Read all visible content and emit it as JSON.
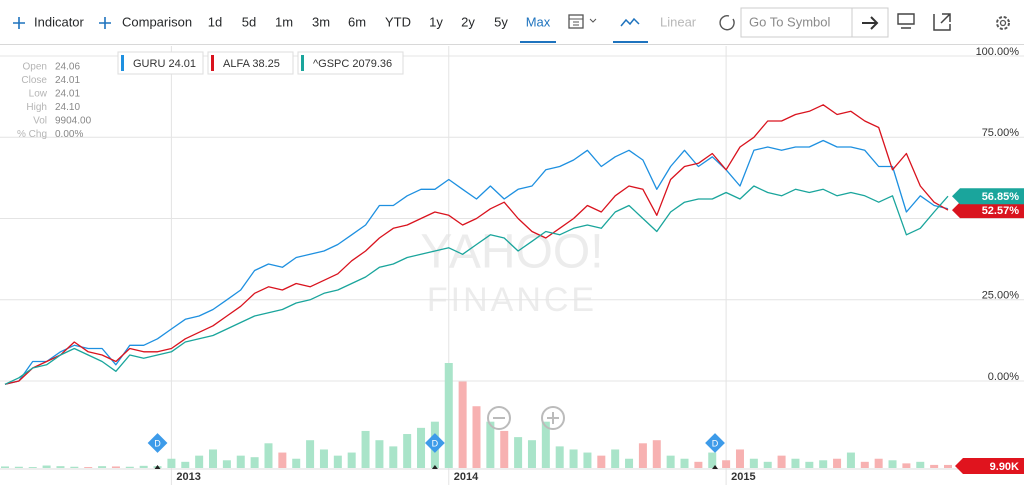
{
  "toolbar": {
    "indicator": "Indicator",
    "comparison": "Comparison",
    "ranges": [
      "1d",
      "5d",
      "1m",
      "3m",
      "6m",
      "YTD",
      "1y",
      "2y",
      "5y",
      "Max"
    ],
    "active_range": "Max",
    "scale": "Linear",
    "search_placeholder": "Go To Symbol"
  },
  "quote_panel": [
    [
      "Open",
      "24.06"
    ],
    [
      "Close",
      "24.01"
    ],
    [
      "Low",
      "24.01"
    ],
    [
      "High",
      "24.10"
    ],
    [
      "Vol",
      "9904.00"
    ],
    [
      "% Chg",
      "0.00%"
    ]
  ],
  "watermark": [
    "YAHOO!",
    "FINANCE"
  ],
  "chart_data": {
    "type": "line",
    "x": [
      2012.4,
      2012.45,
      2012.5,
      2012.55,
      2012.6,
      2012.65,
      2012.7,
      2012.75,
      2012.8,
      2012.85,
      2012.9,
      2012.95,
      2013,
      2013.05,
      2013.1,
      2013.15,
      2013.2,
      2013.25,
      2013.3,
      2013.35,
      2013.4,
      2013.45,
      2013.5,
      2013.55,
      2013.6,
      2013.65,
      2013.7,
      2013.75,
      2013.8,
      2013.85,
      2013.9,
      2013.95,
      2014,
      2014.05,
      2014.1,
      2014.15,
      2014.2,
      2014.25,
      2014.3,
      2014.35,
      2014.4,
      2014.45,
      2014.5,
      2014.55,
      2014.6,
      2014.65,
      2014.7,
      2014.75,
      2014.8,
      2014.85,
      2014.9,
      2014.95,
      2015,
      2015.05,
      2015.1,
      2015.15,
      2015.2,
      2015.25,
      2015.3,
      2015.35,
      2015.4,
      2015.45,
      2015.5,
      2015.55,
      2015.6,
      2015.65,
      2015.7,
      2015.75,
      2015.8
    ],
    "xlim": [
      2012.4,
      2015.8
    ],
    "xticks": [
      2013,
      2014,
      2015
    ],
    "ylim": [
      0,
      100
    ],
    "yticks": [
      {
        "value": 0,
        "label": "0.00%"
      },
      {
        "value": 25,
        "label": "25.00%"
      },
      {
        "value": 50,
        "label": null
      },
      {
        "value": 75,
        "label": "75.00%"
      },
      {
        "value": 100,
        "label": "100.00%"
      }
    ],
    "grid": true,
    "series": [
      {
        "name": "GURU",
        "last_price": 24.01,
        "color": "#1e90e0",
        "values": [
          -1,
          0,
          6,
          6,
          9,
          11,
          10,
          10,
          5,
          11,
          11,
          13,
          16,
          19,
          20,
          22,
          25,
          28,
          34,
          36,
          35,
          38,
          39,
          40,
          42,
          45,
          48,
          54,
          54,
          57,
          59,
          59,
          62,
          59,
          56,
          60,
          56,
          59,
          60,
          65,
          66,
          68,
          71,
          66,
          69,
          71,
          68,
          59,
          66,
          71,
          66,
          69,
          65,
          60,
          71,
          72,
          71,
          72,
          72,
          74,
          72,
          72,
          71,
          66,
          66,
          52,
          57,
          54,
          53
        ]
      },
      {
        "name": "ALFA",
        "last_price": 38.25,
        "color": "#d9131e",
        "values": [
          -1,
          0,
          4,
          6,
          8,
          12,
          9,
          8,
          6,
          10,
          9,
          9,
          10,
          13,
          15,
          17,
          20,
          23,
          27,
          29,
          28,
          30,
          29,
          31,
          33,
          37,
          40,
          44,
          47,
          48,
          50,
          52,
          51,
          48,
          50,
          53,
          55,
          50,
          46,
          44,
          47,
          50,
          54,
          52,
          57,
          60,
          59,
          51,
          62,
          66,
          67,
          70,
          65,
          72,
          75,
          80,
          80,
          82,
          83,
          85,
          82,
          83,
          80,
          78,
          65,
          70,
          60,
          55,
          52.57
        ],
        "value_labels": [
          null,
          null,
          null,
          null,
          null,
          null,
          null,
          null,
          null,
          null,
          null,
          null,
          null,
          null,
          null,
          null,
          null,
          null,
          null,
          null,
          null,
          null,
          null,
          null,
          null,
          null,
          null,
          null,
          null,
          null,
          null,
          null,
          null,
          null,
          null,
          null,
          null,
          null,
          null,
          null,
          null,
          null,
          null,
          null,
          null,
          null,
          null,
          null,
          null,
          null,
          null,
          null,
          null,
          null,
          null,
          null,
          null,
          null,
          null,
          null,
          null,
          null,
          null,
          null,
          null,
          null,
          null,
          null,
          "52.57%"
        ]
      },
      {
        "name": "^GSPC",
        "last_price": 2079.36,
        "color": "#1aa59c",
        "values": [
          -1,
          1,
          4,
          5,
          8,
          10,
          8,
          6,
          3,
          8,
          7,
          8,
          9,
          12,
          13,
          14,
          16,
          18,
          20,
          21,
          22,
          24,
          25,
          27,
          28,
          30,
          32,
          35,
          36,
          38,
          39,
          40,
          41,
          39,
          42,
          45,
          44,
          40,
          43,
          46,
          45,
          47,
          48,
          47,
          52,
          54,
          50,
          46,
          52,
          55,
          56,
          56,
          58,
          56,
          60,
          58,
          57,
          59,
          58,
          59,
          57,
          58,
          57,
          55,
          57,
          45,
          47,
          52,
          56.85
        ],
        "value_labels": [
          null,
          null,
          null,
          null,
          null,
          null,
          null,
          null,
          null,
          null,
          null,
          null,
          null,
          null,
          null,
          null,
          null,
          null,
          null,
          null,
          null,
          null,
          null,
          null,
          null,
          null,
          null,
          null,
          null,
          null,
          null,
          null,
          null,
          null,
          null,
          null,
          null,
          null,
          null,
          null,
          null,
          null,
          null,
          null,
          null,
          null,
          null,
          null,
          null,
          null,
          null,
          null,
          null,
          null,
          null,
          null,
          null,
          null,
          null,
          null,
          null,
          null,
          null,
          null,
          null,
          null,
          null,
          null,
          "56.85%"
        ]
      }
    ],
    "volume": {
      "up_color": "#a9e4c9",
      "down_color": "#f7b1b1",
      "badge_color": "#e0141e",
      "values": [
        5000,
        4000,
        3000,
        8000,
        6000,
        4000,
        3000,
        6000,
        5000,
        4000,
        7000,
        6000,
        30000,
        20000,
        40000,
        60000,
        25000,
        40000,
        35000,
        80000,
        50000,
        30000,
        90000,
        60000,
        40000,
        50000,
        120000,
        90000,
        70000,
        110000,
        130000,
        150000,
        340000,
        280000,
        200000,
        150000,
        120000,
        100000,
        90000,
        150000,
        70000,
        60000,
        50000,
        40000,
        60000,
        30000,
        80000,
        90000,
        40000,
        30000,
        20000,
        50000,
        25000,
        60000,
        30000,
        20000,
        40000,
        30000,
        20000,
        25000,
        30000,
        50000,
        20000,
        30000,
        25000,
        15000,
        20000,
        10000,
        9904
      ],
      "value_labels": [
        null,
        null,
        null,
        null,
        null,
        null,
        null,
        null,
        null,
        null,
        null,
        null,
        null,
        null,
        null,
        null,
        null,
        null,
        null,
        null,
        null,
        null,
        null,
        null,
        null,
        null,
        null,
        null,
        null,
        null,
        null,
        null,
        null,
        null,
        null,
        null,
        null,
        null,
        null,
        null,
        null,
        null,
        null,
        null,
        null,
        null,
        null,
        null,
        null,
        null,
        null,
        null,
        null,
        null,
        null,
        null,
        null,
        null,
        null,
        null,
        null,
        null,
        null,
        null,
        null,
        null,
        null,
        null,
        "9.90K"
      ]
    },
    "events": [
      {
        "x": 2012.95,
        "label": "D"
      },
      {
        "x": 2013.95,
        "label": "D"
      },
      {
        "x": 2014.96,
        "label": "D"
      }
    ]
  }
}
